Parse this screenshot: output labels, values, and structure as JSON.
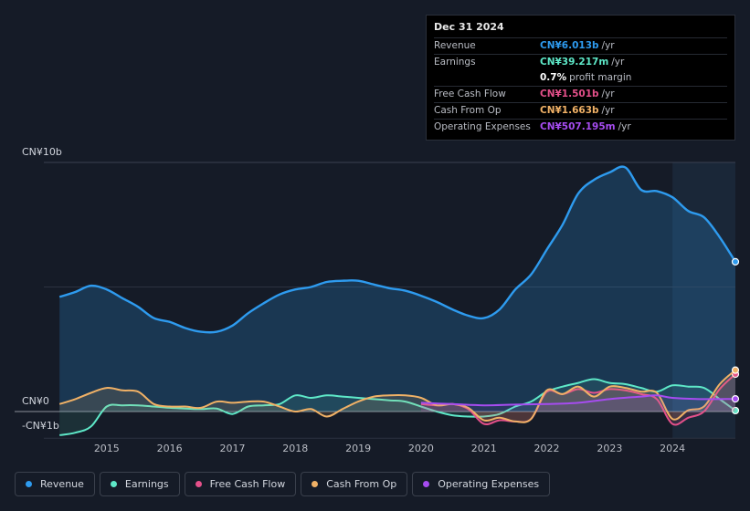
{
  "tooltip": {
    "date": "Dec 31 2024",
    "rows": [
      {
        "label": "Revenue",
        "value": "CN¥6.013b",
        "unit": "/yr",
        "color": "#2e9bef"
      },
      {
        "label": "Earnings",
        "value": "CN¥39.217m",
        "unit": "/yr",
        "color": "#5ee8c8"
      },
      {
        "label": "",
        "value": "0.7%",
        "unit": "profit margin",
        "color": "#ffffff"
      },
      {
        "label": "Free Cash Flow",
        "value": "CN¥1.501b",
        "unit": "/yr",
        "color": "#e4508a"
      },
      {
        "label": "Cash From Op",
        "value": "CN¥1.663b",
        "unit": "/yr",
        "color": "#f0b166"
      },
      {
        "label": "Operating Expenses",
        "value": "CN¥507.195m",
        "unit": "/yr",
        "color": "#a64cf0"
      }
    ]
  },
  "chart_data": {
    "type": "area",
    "title": "",
    "xlabel": "",
    "ylabel": "",
    "y_unit": "CN¥b",
    "ylim": [
      -1,
      10
    ],
    "y_tick_labels": [
      "CN¥10b",
      "CN¥0",
      "-CN¥1b"
    ],
    "x_tick_labels": [
      "2015",
      "2016",
      "2017",
      "2018",
      "2019",
      "2020",
      "2021",
      "2022",
      "2023",
      "2024"
    ],
    "highlight_start": 2024.0,
    "series": [
      {
        "name": "Revenue",
        "color": "#2e9bef",
        "x": [
          2014.25,
          2014.5,
          2014.75,
          2015.0,
          2015.25,
          2015.5,
          2015.75,
          2016.0,
          2016.25,
          2016.5,
          2016.75,
          2017.0,
          2017.25,
          2017.5,
          2017.75,
          2018.0,
          2018.25,
          2018.5,
          2018.75,
          2019.0,
          2019.25,
          2019.5,
          2019.75,
          2020.0,
          2020.25,
          2020.5,
          2020.75,
          2021.0,
          2021.25,
          2021.5,
          2021.75,
          2022.0,
          2022.25,
          2022.5,
          2022.75,
          2023.0,
          2023.25,
          2023.5,
          2023.75,
          2024.0,
          2024.25,
          2024.5,
          2024.75,
          2025.0
        ],
        "values": [
          4.6,
          4.8,
          5.05,
          4.9,
          4.55,
          4.2,
          3.75,
          3.6,
          3.35,
          3.2,
          3.2,
          3.45,
          3.95,
          4.35,
          4.7,
          4.9,
          5.0,
          5.2,
          5.25,
          5.25,
          5.1,
          4.95,
          4.85,
          4.65,
          4.4,
          4.1,
          3.85,
          3.75,
          4.1,
          4.9,
          5.5,
          6.5,
          7.5,
          8.75,
          9.3,
          9.6,
          9.8,
          8.9,
          8.85,
          8.6,
          8.05,
          7.8,
          7.0,
          6.013
        ]
      },
      {
        "name": "Earnings",
        "color": "#5ee8c8",
        "x": [
          2014.25,
          2014.5,
          2014.75,
          2015.0,
          2015.25,
          2015.5,
          2015.75,
          2016.0,
          2016.25,
          2016.5,
          2016.75,
          2017.0,
          2017.25,
          2017.5,
          2017.75,
          2018.0,
          2018.25,
          2018.5,
          2018.75,
          2019.0,
          2019.25,
          2019.5,
          2019.75,
          2020.0,
          2020.25,
          2020.5,
          2020.75,
          2021.0,
          2021.25,
          2021.5,
          2021.75,
          2022.0,
          2022.25,
          2022.5,
          2022.75,
          2023.0,
          2023.25,
          2023.5,
          2023.75,
          2024.0,
          2024.25,
          2024.5,
          2024.75,
          2025.0
        ],
        "values": [
          -0.95,
          -0.85,
          -0.6,
          0.2,
          0.25,
          0.25,
          0.2,
          0.15,
          0.12,
          0.1,
          0.12,
          -0.1,
          0.2,
          0.25,
          0.3,
          0.65,
          0.55,
          0.65,
          0.6,
          0.55,
          0.5,
          0.45,
          0.4,
          0.2,
          0.0,
          -0.15,
          -0.2,
          -0.2,
          -0.1,
          0.2,
          0.4,
          0.8,
          1.0,
          1.15,
          1.3,
          1.15,
          1.1,
          0.95,
          0.8,
          1.05,
          1.0,
          0.95,
          0.5,
          0.039
        ]
      },
      {
        "name": "Free Cash Flow",
        "color": "#e4508a",
        "x": [
          2020.0,
          2020.25,
          2020.5,
          2020.75,
          2021.0,
          2021.25,
          2021.5,
          2021.75,
          2022.0,
          2022.25,
          2022.5,
          2022.75,
          2023.0,
          2023.25,
          2023.5,
          2023.75,
          2024.0,
          2024.25,
          2024.5,
          2024.75,
          2025.0
        ],
        "values": [
          0.3,
          0.25,
          0.3,
          0.1,
          -0.5,
          -0.35,
          -0.4,
          -0.3,
          0.8,
          0.7,
          0.9,
          0.75,
          0.9,
          0.85,
          0.7,
          0.5,
          -0.5,
          -0.25,
          0.0,
          0.9,
          1.501
        ]
      },
      {
        "name": "Cash From Op",
        "color": "#f0b166",
        "x": [
          2014.25,
          2014.5,
          2014.75,
          2015.0,
          2015.25,
          2015.5,
          2015.75,
          2016.0,
          2016.25,
          2016.5,
          2016.75,
          2017.0,
          2017.25,
          2017.5,
          2017.75,
          2018.0,
          2018.25,
          2018.5,
          2018.75,
          2019.0,
          2019.25,
          2019.5,
          2019.75,
          2020.0,
          2020.25,
          2020.5,
          2020.75,
          2021.0,
          2021.25,
          2021.5,
          2021.75,
          2022.0,
          2022.25,
          2022.5,
          2022.75,
          2023.0,
          2023.25,
          2023.5,
          2023.75,
          2024.0,
          2024.25,
          2024.5,
          2024.75,
          2025.0
        ],
        "values": [
          0.3,
          0.5,
          0.75,
          0.95,
          0.85,
          0.8,
          0.3,
          0.2,
          0.2,
          0.15,
          0.4,
          0.35,
          0.4,
          0.4,
          0.2,
          0.0,
          0.1,
          -0.2,
          0.1,
          0.4,
          0.6,
          0.65,
          0.65,
          0.55,
          0.25,
          0.3,
          0.15,
          -0.35,
          -0.25,
          -0.4,
          -0.3,
          0.85,
          0.7,
          1.0,
          0.6,
          1.0,
          0.95,
          0.8,
          0.75,
          -0.3,
          0.05,
          0.2,
          1.1,
          1.663
        ]
      },
      {
        "name": "Operating Expenses",
        "color": "#a64cf0",
        "x": [
          2020.0,
          2020.5,
          2021.0,
          2021.5,
          2022.0,
          2022.5,
          2023.0,
          2023.5,
          2023.75,
          2024.0,
          2024.5,
          2025.0
        ],
        "values": [
          0.35,
          0.3,
          0.25,
          0.28,
          0.3,
          0.35,
          0.5,
          0.6,
          0.65,
          0.55,
          0.5,
          0.507
        ]
      }
    ]
  },
  "legend": [
    {
      "label": "Revenue",
      "color": "#2e9bef"
    },
    {
      "label": "Earnings",
      "color": "#5ee8c8"
    },
    {
      "label": "Free Cash Flow",
      "color": "#e4508a"
    },
    {
      "label": "Cash From Op",
      "color": "#f0b166"
    },
    {
      "label": "Operating Expenses",
      "color": "#a64cf0"
    }
  ]
}
